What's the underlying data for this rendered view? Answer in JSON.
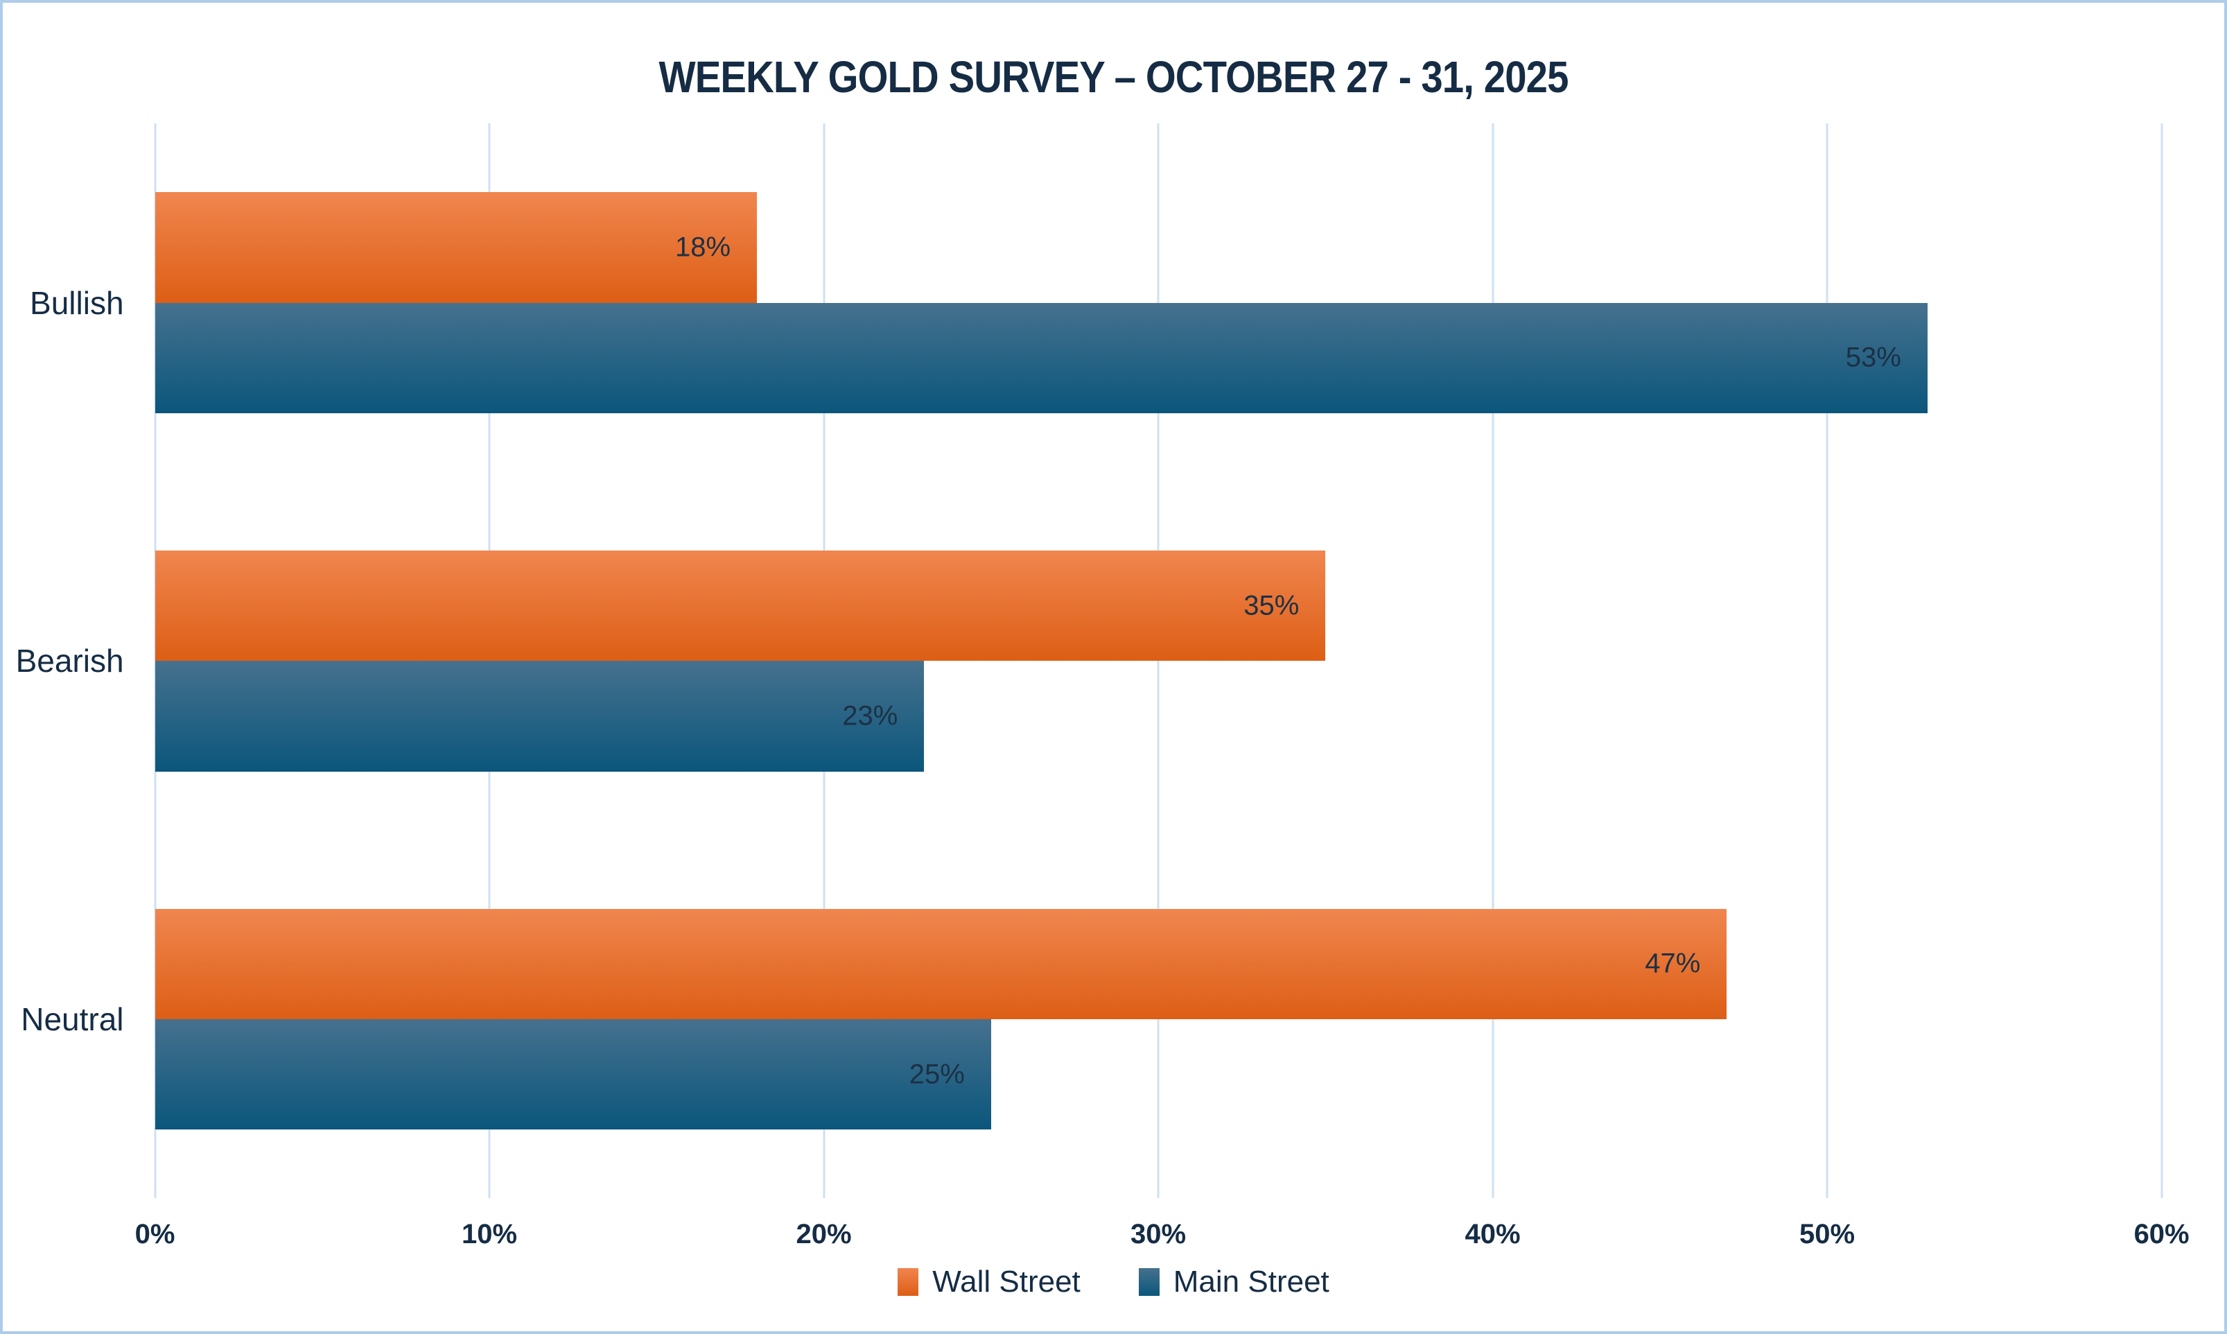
{
  "title": "WEEKLY GOLD SURVEY – OCTOBER 27 - 31, 2025",
  "chart_data": {
    "type": "bar",
    "orientation": "horizontal",
    "categories": [
      "Bullish",
      "Bearish",
      "Neutral"
    ],
    "series": [
      {
        "name": "Wall Street",
        "values": [
          18,
          35,
          47
        ]
      },
      {
        "name": "Main Street",
        "values": [
          53,
          23,
          25
        ]
      }
    ],
    "value_suffix": "%",
    "x_ticks": [
      "0%",
      "10%",
      "20%",
      "30%",
      "40%",
      "50%",
      "60%"
    ],
    "xlim": [
      0,
      60
    ],
    "grid": true,
    "legend_position": "bottom",
    "title": "WEEKLY GOLD SURVEY – OCTOBER 27 - 31, 2025"
  },
  "colors": {
    "title_text": "#152c44",
    "label_text": "#152c44",
    "value_text": "#1c3044",
    "gridline": "#cfe0f1",
    "border": "#aecbe9",
    "background": "#ffffff",
    "wall_street_top": "#f0864f",
    "wall_street_bottom": "#dd5e15",
    "wall_street_legend": "#e8702a",
    "main_street_top": "#46718e",
    "main_street_bottom": "#0b567c",
    "main_street_legend": "#1d6084"
  }
}
